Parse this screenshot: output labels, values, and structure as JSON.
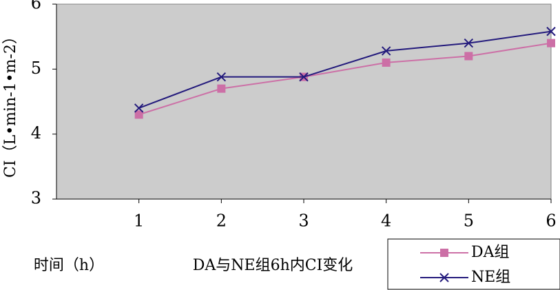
{
  "chart_data": {
    "type": "line",
    "title": "DA与NE组6h内CI变化",
    "x_label": "时间（h）",
    "y_label": "CI（L•min-1•m-2）",
    "x": [
      1,
      2,
      3,
      4,
      5,
      6
    ],
    "xlim": [
      0,
      6
    ],
    "xticks": [
      1,
      2,
      3,
      4,
      5,
      6
    ],
    "ylim": [
      3,
      6
    ],
    "yticks": [
      3,
      4,
      5,
      6
    ],
    "grid": false,
    "legend": "lower right",
    "series": [
      {
        "name": "DA组",
        "color": "#cc6fa6",
        "marker": "square",
        "values": [
          4.3,
          4.7,
          4.88,
          5.1,
          5.2,
          5.4
        ]
      },
      {
        "name": "NE组",
        "color": "#231a7c",
        "marker": "x",
        "values": [
          4.4,
          4.88,
          4.88,
          5.28,
          5.4,
          5.58
        ]
      }
    ]
  }
}
